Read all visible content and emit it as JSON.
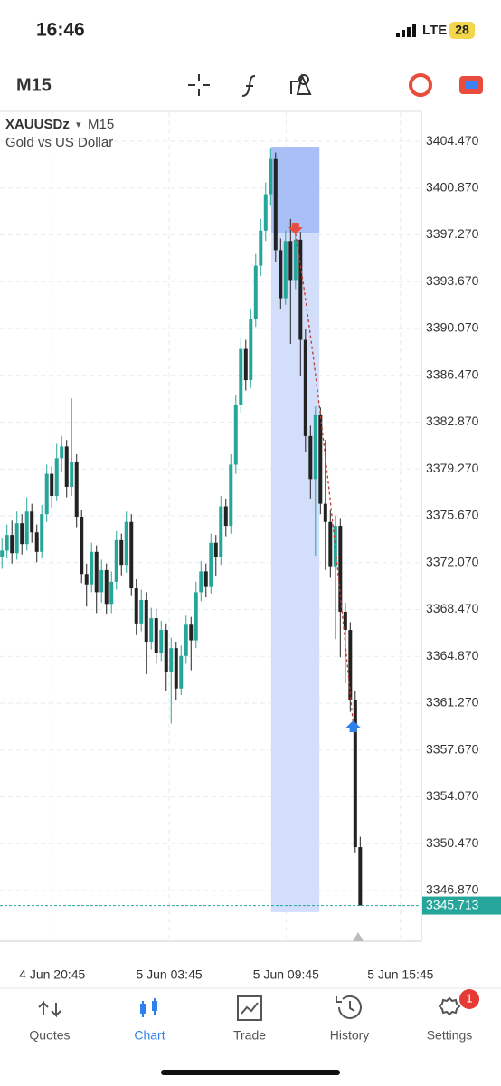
{
  "status_bar": {
    "time": "16:46",
    "network": "LTE",
    "battery": "28"
  },
  "toolbar": {
    "timeframe": "M15"
  },
  "chart_data": {
    "type": "candlestick",
    "symbol": "XAUUSDz",
    "timeframe": "M15",
    "description": "Gold vs US Dollar",
    "ohlc": [
      [
        3372.5,
        3374.0,
        3371.6,
        3373.0
      ],
      [
        3373.0,
        3375.0,
        3372.4,
        3374.2
      ],
      [
        3374.2,
        3375.3,
        3372.0,
        3372.8
      ],
      [
        3372.8,
        3376.0,
        3372.3,
        3375.1
      ],
      [
        3375.1,
        3375.8,
        3372.7,
        3373.5
      ],
      [
        3373.5,
        3377.1,
        3373.0,
        3376.0
      ],
      [
        3376.0,
        3376.6,
        3373.6,
        3374.4
      ],
      [
        3374.4,
        3375.0,
        3372.1,
        3372.9
      ],
      [
        3372.9,
        3376.5,
        3372.4,
        3375.8
      ],
      [
        3375.8,
        3379.6,
        3375.2,
        3378.9
      ],
      [
        3378.9,
        3379.5,
        3376.3,
        3377.2
      ],
      [
        3377.2,
        3381.2,
        3376.8,
        3380.1
      ],
      [
        3380.1,
        3381.8,
        3379.0,
        3381.0
      ],
      [
        3381.0,
        3381.5,
        3377.1,
        3377.9
      ],
      [
        3377.9,
        3384.7,
        3377.2,
        3379.8
      ],
      [
        3379.8,
        3380.4,
        3374.8,
        3375.6
      ],
      [
        3375.6,
        3376.1,
        3370.5,
        3371.2
      ],
      [
        3371.2,
        3372.0,
        3368.7,
        3370.4
      ],
      [
        3370.4,
        3373.6,
        3369.8,
        3372.9
      ],
      [
        3372.9,
        3373.4,
        3368.2,
        3369.8
      ],
      [
        3369.8,
        3372.3,
        3369.0,
        3371.5
      ],
      [
        3371.5,
        3372.0,
        3368.1,
        3368.9
      ],
      [
        3368.9,
        3371.4,
        3368.2,
        3370.6
      ],
      [
        3370.6,
        3374.5,
        3370.0,
        3373.8
      ],
      [
        3373.8,
        3374.3,
        3371.1,
        3371.9
      ],
      [
        3371.9,
        3376.0,
        3371.3,
        3375.2
      ],
      [
        3375.2,
        3375.8,
        3369.5,
        3370.1
      ],
      [
        3370.1,
        3370.8,
        3366.5,
        3367.4
      ],
      [
        3367.4,
        3370.0,
        3366.8,
        3369.2
      ],
      [
        3369.2,
        3369.8,
        3363.5,
        3366.0
      ],
      [
        3366.0,
        3368.6,
        3365.4,
        3367.8
      ],
      [
        3367.8,
        3368.5,
        3364.3,
        3365.1
      ],
      [
        3365.1,
        3367.6,
        3364.5,
        3366.9
      ],
      [
        3366.9,
        3367.4,
        3362.2,
        3363.7
      ],
      [
        3363.7,
        3366.3,
        3359.7,
        3365.5
      ],
      [
        3365.5,
        3366.0,
        3361.5,
        3362.4
      ],
      [
        3362.4,
        3365.7,
        3361.9,
        3364.9
      ],
      [
        3364.9,
        3368.0,
        3364.3,
        3367.3
      ],
      [
        3367.3,
        3367.9,
        3363.8,
        3366.1
      ],
      [
        3366.1,
        3370.6,
        3365.5,
        3369.8
      ],
      [
        3369.8,
        3372.2,
        3369.1,
        3371.4
      ],
      [
        3371.4,
        3372.0,
        3369.4,
        3370.2
      ],
      [
        3370.2,
        3374.3,
        3369.7,
        3373.6
      ],
      [
        3373.6,
        3374.2,
        3371.0,
        3372.5
      ],
      [
        3372.5,
        3377.2,
        3371.9,
        3376.4
      ],
      [
        3376.4,
        3377.0,
        3374.1,
        3374.9
      ],
      [
        3374.9,
        3380.4,
        3374.3,
        3379.6
      ],
      [
        3379.6,
        3385.0,
        3378.9,
        3384.2
      ],
      [
        3384.2,
        3389.4,
        3383.6,
        3388.5
      ],
      [
        3388.5,
        3389.2,
        3385.3,
        3386.1
      ],
      [
        3386.1,
        3391.6,
        3385.5,
        3390.8
      ],
      [
        3390.8,
        3395.8,
        3390.2,
        3394.9
      ],
      [
        3394.9,
        3398.5,
        3394.1,
        3397.6
      ],
      [
        3397.6,
        3401.3,
        3396.8,
        3400.4
      ],
      [
        3400.4,
        3403.9,
        3399.5,
        3403.1
      ],
      [
        3403.1,
        3403.6,
        3395.2,
        3396.1
      ],
      [
        3396.1,
        3397.0,
        3391.6,
        3392.4
      ],
      [
        3392.4,
        3397.6,
        3391.9,
        3396.8
      ],
      [
        3396.8,
        3398.5,
        3388.9,
        3393.8
      ],
      [
        3393.8,
        3398.0,
        3393.1,
        3396.9
      ],
      [
        3396.9,
        3397.5,
        3386.4,
        3389.2
      ],
      [
        3389.2,
        3390.0,
        3380.6,
        3381.8
      ],
      [
        3381.8,
        3382.6,
        3377.0,
        3378.5
      ],
      [
        3378.5,
        3384.1,
        3372.6,
        3383.4
      ],
      [
        3383.4,
        3384.0,
        3375.8,
        3376.6
      ],
      [
        3376.6,
        3381.5,
        3371.5,
        3375.2
      ],
      [
        3375.2,
        3376.1,
        3370.9,
        3371.8
      ],
      [
        3371.8,
        3375.7,
        3366.2,
        3374.9
      ],
      [
        3374.9,
        3375.5,
        3364.8,
        3368.3
      ],
      [
        3368.3,
        3369.0,
        3362.8,
        3366.9
      ],
      [
        3366.9,
        3367.5,
        3360.6,
        3361.5
      ],
      [
        3361.5,
        3362.2,
        3349.8,
        3350.2
      ],
      [
        3350.2,
        3351.0,
        3345.713,
        3345.713
      ]
    ],
    "up_color": "#26a69a",
    "down_color": "#222222",
    "current_price": 3345.713,
    "trade": {
      "start_index": 54.1,
      "end_index": 63.8,
      "stop_loss": 3404.05,
      "entry_price": 3397.37,
      "take_profit": 3345.2,
      "entry_index": 59,
      "exit_index": 70.6,
      "exit_price": 3359.6
    },
    "ylim": [
      3342.97,
      3406.7
    ],
    "yticks": [
      {
        "value": 3404.47,
        "label": "3404.470"
      },
      {
        "value": 3400.87,
        "label": "3400.870"
      },
      {
        "value": 3397.27,
        "label": "3397.270"
      },
      {
        "value": 3393.67,
        "label": "3393.670"
      },
      {
        "value": 3390.07,
        "label": "3390.070"
      },
      {
        "value": 3386.47,
        "label": "3386.470"
      },
      {
        "value": 3382.87,
        "label": "3382.870"
      },
      {
        "value": 3379.27,
        "label": "3379.270"
      },
      {
        "value": 3375.67,
        "label": "3375.670"
      },
      {
        "value": 3372.07,
        "label": "3372.070"
      },
      {
        "value": 3368.47,
        "label": "3368.470"
      },
      {
        "value": 3364.87,
        "label": "3364.870"
      },
      {
        "value": 3361.27,
        "label": "3361.270"
      },
      {
        "value": 3357.67,
        "label": "3357.670"
      },
      {
        "value": 3354.07,
        "label": "3354.070"
      },
      {
        "value": 3350.47,
        "label": "3350.470"
      },
      {
        "value": 3346.87,
        "label": "3346.870"
      }
    ],
    "xlim": [
      -0.4,
      84.3
    ],
    "xticks": [
      {
        "value": 10.1,
        "label": "4 Jun 20:45"
      },
      {
        "value": 33.6,
        "label": "5 Jun 03:45"
      },
      {
        "value": 57.1,
        "label": "5 Jun 09:45"
      },
      {
        "value": 80.1,
        "label": "5 Jun 15:45"
      }
    ],
    "grid": true
  },
  "nav": {
    "items": [
      "Quotes",
      "Chart",
      "Trade",
      "History",
      "Settings"
    ],
    "active": 1,
    "badge": "1"
  }
}
